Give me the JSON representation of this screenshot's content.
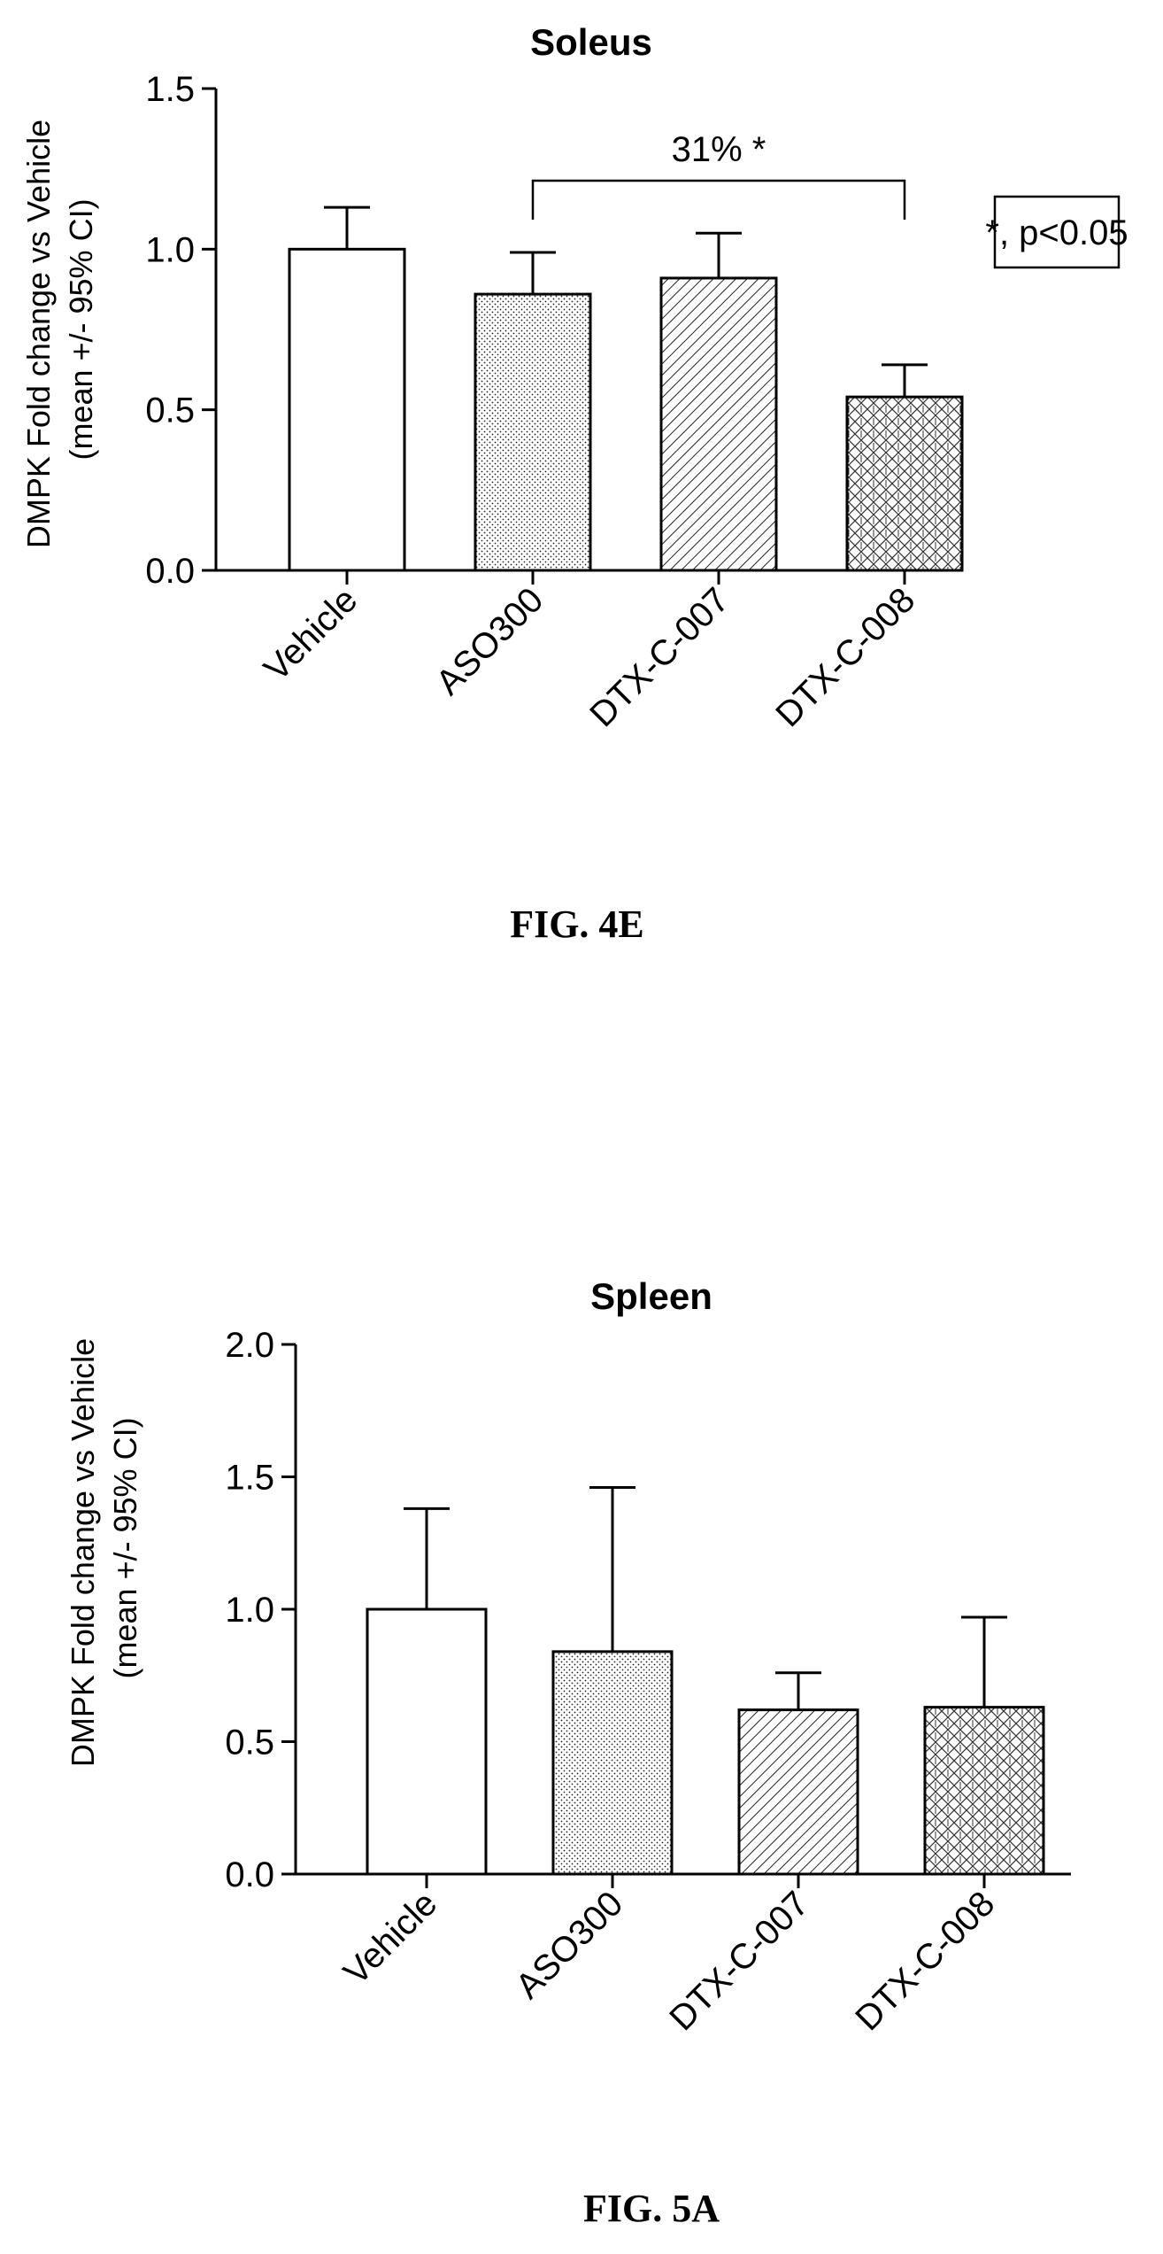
{
  "chart_data": [
    {
      "type": "bar",
      "title": "Soleus",
      "ylabel": "DMPK Fold change vs Vehicle\n(mean +/- 95% CI)",
      "xlabel": "",
      "ylim": [
        0,
        1.5
      ],
      "yticks": [
        "0.0",
        "0.5",
        "1.0",
        "1.5"
      ],
      "categories": [
        "Vehicle",
        "ASO300",
        "DTX-C-007",
        "DTX-C-008"
      ],
      "values": [
        1.0,
        0.86,
        0.91,
        0.54
      ],
      "error_upper": [
        1.13,
        0.99,
        1.05,
        0.64
      ],
      "fills": [
        "none",
        "dots",
        "diagonal",
        "crosshatch"
      ],
      "annotation": {
        "text": "31% *",
        "from_category": "ASO300",
        "to_category": "DTX-C-008"
      },
      "legend_box": "*, p<0.05",
      "caption": "FIG. 4E"
    },
    {
      "type": "bar",
      "title": "Spleen",
      "ylabel": "DMPK Fold change vs Vehicle\n(mean +/- 95% CI)",
      "xlabel": "",
      "ylim": [
        0,
        2.0
      ],
      "yticks": [
        "0.0",
        "0.5",
        "1.0",
        "1.5",
        "2.0"
      ],
      "categories": [
        "Vehicle",
        "ASO300",
        "DTX-C-007",
        "DTX-C-008"
      ],
      "values": [
        1.0,
        0.84,
        0.62,
        0.63
      ],
      "error_upper": [
        1.38,
        1.46,
        0.76,
        0.97
      ],
      "fills": [
        "none",
        "dots",
        "diagonal",
        "crosshatch"
      ],
      "caption": "FIG. 5A"
    }
  ]
}
